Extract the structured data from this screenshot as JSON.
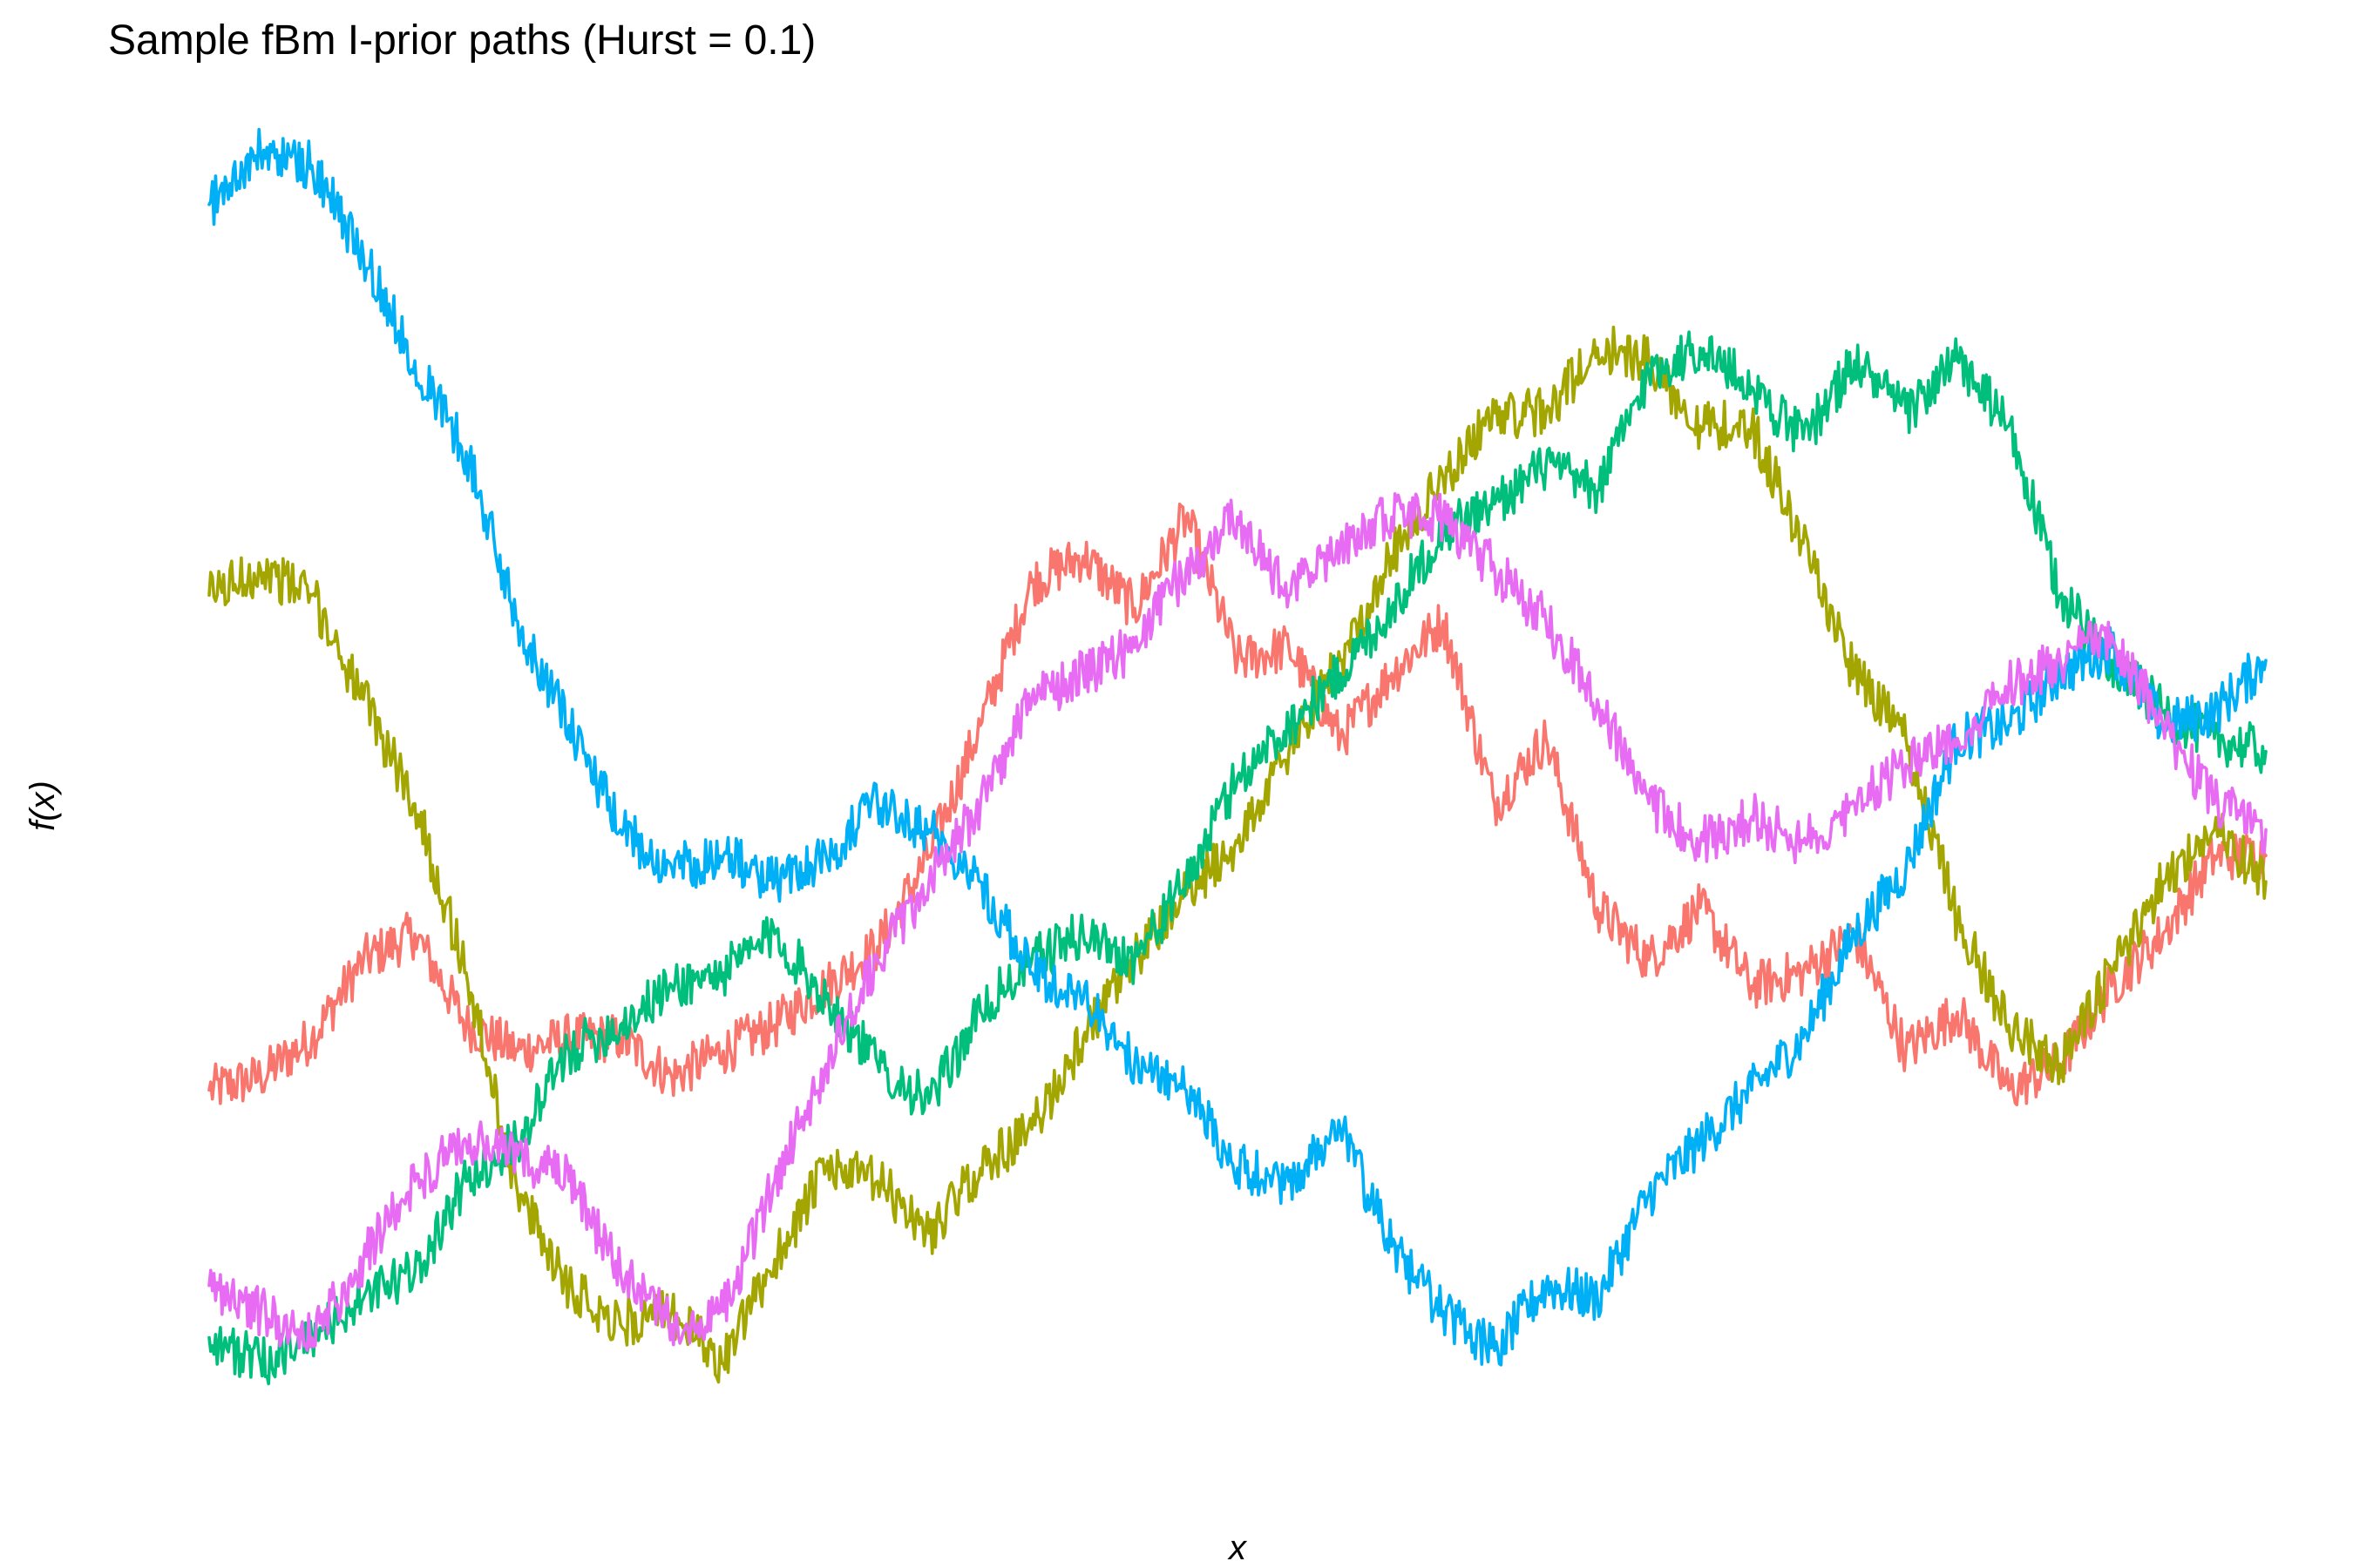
{
  "chart_data": {
    "type": "line",
    "title": "Sample fBm I-prior paths (Hurst = 0.1)",
    "xlabel": "x",
    "ylabel": "f(x)",
    "grid": false,
    "legend": "none",
    "axis_ticks_shown": false,
    "x": [
      0.0,
      0.025,
      0.05,
      0.075,
      0.1,
      0.125,
      0.15,
      0.175,
      0.2,
      0.225,
      0.25,
      0.275,
      0.3,
      0.325,
      0.35,
      0.375,
      0.4,
      0.425,
      0.45,
      0.475,
      0.5,
      0.525,
      0.55,
      0.575,
      0.6,
      0.625,
      0.65,
      0.675,
      0.7,
      0.725,
      0.75,
      0.775,
      0.8,
      0.825,
      0.85,
      0.875,
      0.9,
      0.925,
      0.95,
      0.975,
      1.0
    ],
    "ylim": [
      0.0,
      1.0
    ],
    "series": [
      {
        "color": "#F8766D",
        "values": [
          0.28,
          0.29,
          0.32,
          0.38,
          0.4,
          0.33,
          0.31,
          0.32,
          0.32,
          0.29,
          0.31,
          0.33,
          0.36,
          0.39,
          0.46,
          0.56,
          0.67,
          0.69,
          0.65,
          0.72,
          0.61,
          0.62,
          0.55,
          0.6,
          0.64,
          0.5,
          0.55,
          0.42,
          0.38,
          0.42,
          0.36,
          0.37,
          0.4,
          0.31,
          0.34,
          0.28,
          0.3,
          0.36,
          0.4,
          0.46,
          0.46
        ]
      },
      {
        "color": "#A3A500",
        "values": [
          0.66,
          0.68,
          0.66,
          0.58,
          0.5,
          0.37,
          0.2,
          0.13,
          0.1,
          0.11,
          0.07,
          0.15,
          0.22,
          0.21,
          0.17,
          0.22,
          0.25,
          0.32,
          0.38,
          0.43,
          0.47,
          0.54,
          0.61,
          0.69,
          0.75,
          0.8,
          0.8,
          0.85,
          0.84,
          0.79,
          0.79,
          0.7,
          0.6,
          0.55,
          0.41,
          0.33,
          0.3,
          0.37,
          0.44,
          0.48,
          0.44
        ]
      },
      {
        "color": "#00BF7D",
        "values": [
          0.09,
          0.07,
          0.09,
          0.12,
          0.14,
          0.21,
          0.24,
          0.31,
          0.33,
          0.36,
          0.37,
          0.4,
          0.35,
          0.3,
          0.27,
          0.34,
          0.38,
          0.4,
          0.38,
          0.44,
          0.52,
          0.56,
          0.6,
          0.65,
          0.71,
          0.73,
          0.76,
          0.74,
          0.83,
          0.85,
          0.82,
          0.78,
          0.84,
          0.8,
          0.84,
          0.79,
          0.66,
          0.61,
          0.57,
          0.55,
          0.54
        ]
      },
      {
        "color": "#00B0F6",
        "values": [
          0.96,
          1.0,
          0.99,
          0.92,
          0.84,
          0.77,
          0.64,
          0.56,
          0.48,
          0.45,
          0.46,
          0.44,
          0.46,
          0.5,
          0.48,
          0.44,
          0.37,
          0.35,
          0.3,
          0.28,
          0.22,
          0.21,
          0.25,
          0.16,
          0.11,
          0.08,
          0.13,
          0.12,
          0.2,
          0.24,
          0.28,
          0.32,
          0.4,
          0.45,
          0.55,
          0.56,
          0.6,
          0.62,
          0.56,
          0.57,
          0.61
        ]
      },
      {
        "color": "#E76BF3",
        "values": [
          0.13,
          0.11,
          0.09,
          0.15,
          0.21,
          0.24,
          0.23,
          0.21,
          0.14,
          0.1,
          0.11,
          0.21,
          0.3,
          0.38,
          0.44,
          0.5,
          0.58,
          0.6,
          0.62,
          0.68,
          0.72,
          0.66,
          0.7,
          0.72,
          0.72,
          0.68,
          0.64,
          0.58,
          0.5,
          0.47,
          0.49,
          0.47,
          0.5,
          0.53,
          0.55,
          0.59,
          0.61,
          0.63,
          0.56,
          0.5,
          0.48
        ]
      }
    ]
  }
}
